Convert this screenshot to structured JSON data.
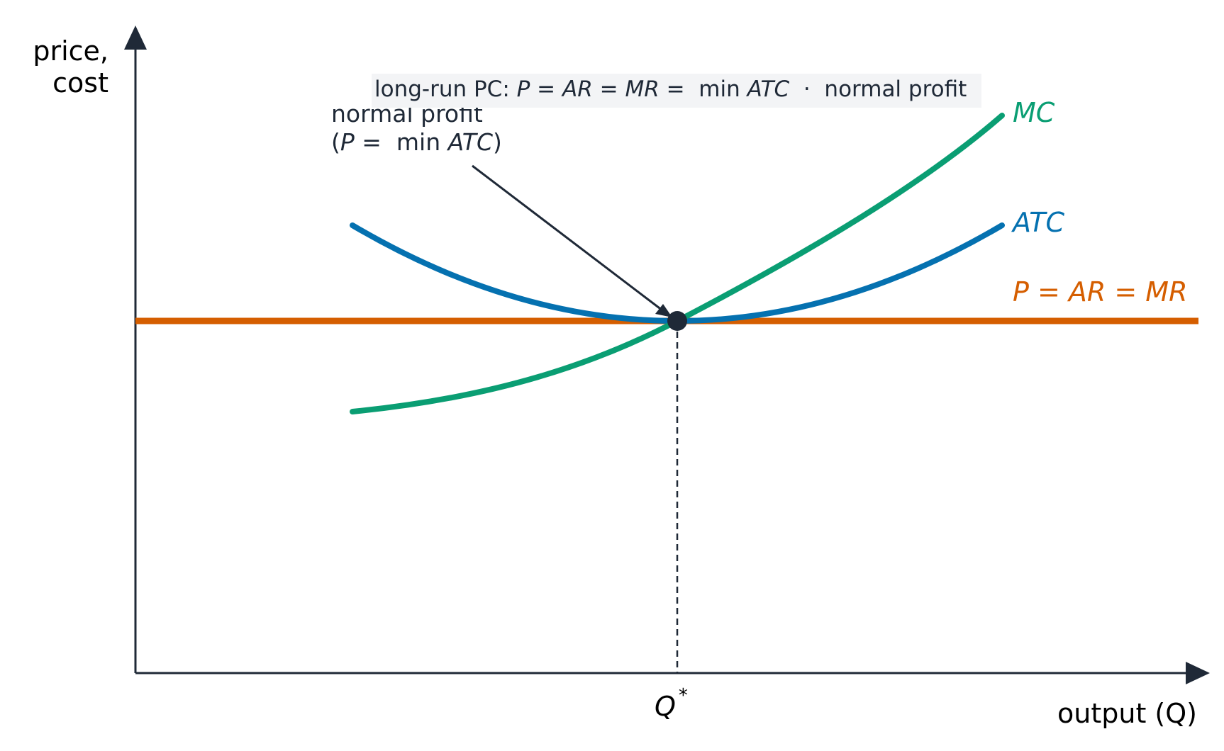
{
  "banner": {
    "prefix": "long-run PC: ",
    "eq_italic_1": "P",
    "eq_1": " = ",
    "eq_italic_2": "AR",
    "eq_2": " = ",
    "eq_italic_3": "MR",
    "eq_3": " =  min ",
    "eq_italic_4": "ATC",
    "suffix": "  ·  normal profit"
  },
  "axes": {
    "y_label_line1": "price,",
    "y_label_line2": "cost",
    "x_label": "output (Q)"
  },
  "curves": {
    "mc_label": "MC",
    "atc_label": "ATC",
    "price_label": "P = AR = MR",
    "qstar_label": "Q",
    "qstar_sup": "*"
  },
  "annotation": {
    "line1": "normal profit",
    "line2_open": "(",
    "line2_italic_p": "P",
    "line2_mid": " =  min ",
    "line2_italic_atc": "ATC",
    "line2_close": ")"
  },
  "colors": {
    "mc": "#0a9e73",
    "atc": "#0571b0",
    "price": "#d55e00",
    "axis": "#1f2937",
    "banner_bg": "#f3f4f6"
  }
}
